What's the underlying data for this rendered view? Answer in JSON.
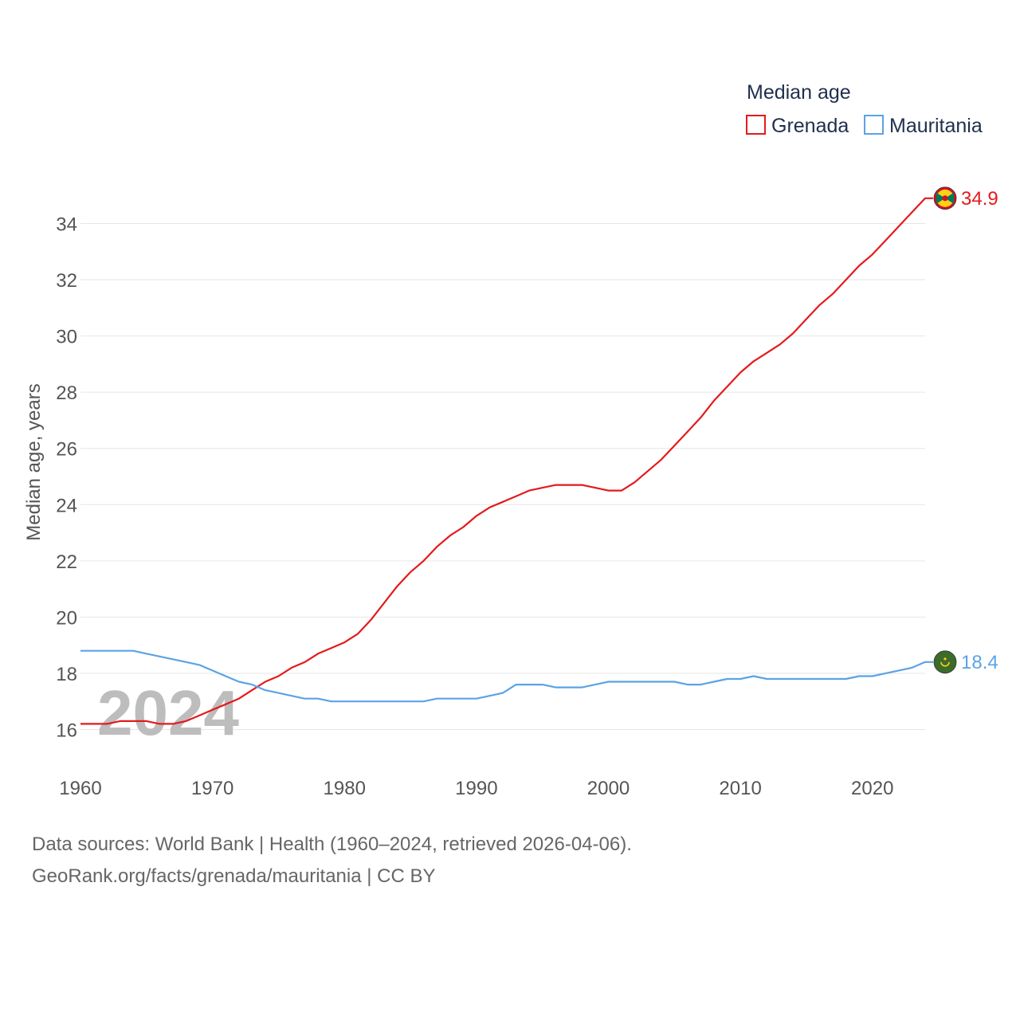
{
  "chart_data": {
    "type": "line",
    "legend_title": "Median age",
    "ylabel": "Median age, years",
    "xlabel": "",
    "xlim": [
      1960,
      2024
    ],
    "ylim": [
      15,
      35.5
    ],
    "yticks": [
      16,
      18,
      20,
      22,
      24,
      26,
      28,
      30,
      32,
      34
    ],
    "xticks": [
      1960,
      1970,
      1980,
      1990,
      2000,
      2010,
      2020
    ],
    "watermark_year": "2024",
    "x": [
      1960,
      1961,
      1962,
      1963,
      1964,
      1965,
      1966,
      1967,
      1968,
      1969,
      1970,
      1971,
      1972,
      1973,
      1974,
      1975,
      1976,
      1977,
      1978,
      1979,
      1980,
      1981,
      1982,
      1983,
      1984,
      1985,
      1986,
      1987,
      1988,
      1989,
      1990,
      1991,
      1992,
      1993,
      1994,
      1995,
      1996,
      1997,
      1998,
      1999,
      2000,
      2001,
      2002,
      2003,
      2004,
      2005,
      2006,
      2007,
      2008,
      2009,
      2010,
      2011,
      2012,
      2013,
      2014,
      2015,
      2016,
      2017,
      2018,
      2019,
      2020,
      2021,
      2022,
      2023,
      2024
    ],
    "series": [
      {
        "name": "Grenada",
        "color": "#e41a1c",
        "end_label": "34.9",
        "flag_icon": "grenada-flag-icon",
        "values": [
          16.2,
          16.2,
          16.2,
          16.3,
          16.3,
          16.3,
          16.2,
          16.2,
          16.3,
          16.5,
          16.7,
          16.9,
          17.1,
          17.4,
          17.7,
          17.9,
          18.2,
          18.4,
          18.7,
          18.9,
          19.1,
          19.4,
          19.9,
          20.5,
          21.1,
          21.6,
          22.0,
          22.5,
          22.9,
          23.2,
          23.6,
          23.9,
          24.1,
          24.3,
          24.5,
          24.6,
          24.7,
          24.7,
          24.7,
          24.6,
          24.5,
          24.5,
          24.8,
          25.2,
          25.6,
          26.1,
          26.6,
          27.1,
          27.7,
          28.2,
          28.7,
          29.1,
          29.4,
          29.7,
          30.1,
          30.6,
          31.1,
          31.5,
          32.0,
          32.5,
          32.9,
          33.4,
          33.9,
          34.4,
          34.9
        ]
      },
      {
        "name": "Mauritania",
        "color": "#5ba3e6",
        "end_label": "18.4",
        "flag_icon": "mauritania-flag-icon",
        "values": [
          18.8,
          18.8,
          18.8,
          18.8,
          18.8,
          18.7,
          18.6,
          18.5,
          18.4,
          18.3,
          18.1,
          17.9,
          17.7,
          17.6,
          17.4,
          17.3,
          17.2,
          17.1,
          17.1,
          17.0,
          17.0,
          17.0,
          17.0,
          17.0,
          17.0,
          17.0,
          17.0,
          17.1,
          17.1,
          17.1,
          17.1,
          17.2,
          17.3,
          17.6,
          17.6,
          17.6,
          17.5,
          17.5,
          17.5,
          17.6,
          17.7,
          17.7,
          17.7,
          17.7,
          17.7,
          17.7,
          17.6,
          17.6,
          17.7,
          17.8,
          17.8,
          17.9,
          17.8,
          17.8,
          17.8,
          17.8,
          17.8,
          17.8,
          17.8,
          17.9,
          17.9,
          18.0,
          18.1,
          18.2,
          18.4
        ]
      }
    ]
  },
  "footer": {
    "sources": "Data sources: World Bank | Health (1960–2024, retrieved 2026-04-06).",
    "attribution": "GeoRank.org/facts/grenada/mauritania | CC BY"
  }
}
